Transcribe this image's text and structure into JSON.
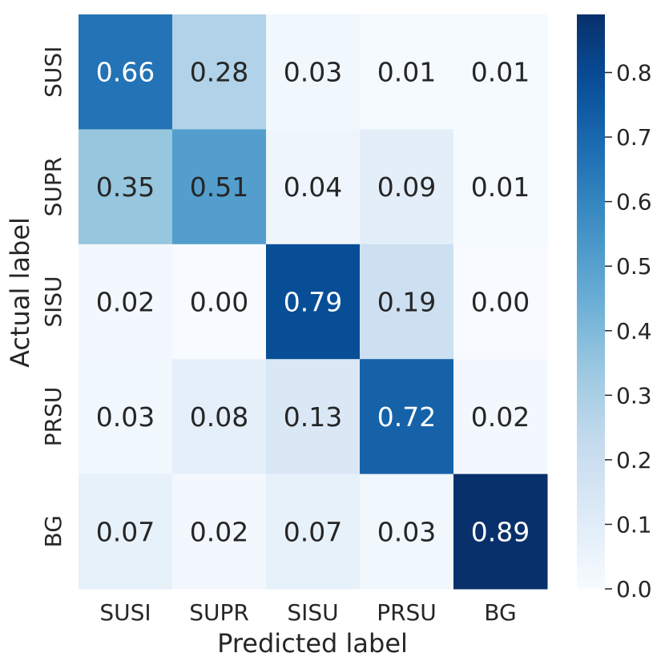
{
  "chart_data": {
    "type": "heatmap",
    "title": "",
    "xlabel": "Predicted label",
    "ylabel": "Actual label",
    "x_categories": [
      "SUSI",
      "SUPR",
      "SISU",
      "PRSU",
      "BG"
    ],
    "y_categories": [
      "SUSI",
      "SUPR",
      "SISU",
      "PRSU",
      "BG"
    ],
    "values": [
      [
        0.66,
        0.28,
        0.03,
        0.01,
        0.01
      ],
      [
        0.35,
        0.51,
        0.04,
        0.09,
        0.01
      ],
      [
        0.02,
        0.0,
        0.79,
        0.19,
        0.0
      ],
      [
        0.03,
        0.08,
        0.13,
        0.72,
        0.02
      ],
      [
        0.07,
        0.02,
        0.07,
        0.03,
        0.89
      ]
    ],
    "cell_labels": [
      [
        "0.66",
        "0.28",
        "0.03",
        "0.01",
        "0.01"
      ],
      [
        "0.35",
        "0.51",
        "0.04",
        "0.09",
        "0.01"
      ],
      [
        "0.02",
        "0.00",
        "0.79",
        "0.19",
        "0.00"
      ],
      [
        "0.03",
        "0.08",
        "0.13",
        "0.72",
        "0.02"
      ],
      [
        "0.07",
        "0.02",
        "0.07",
        "0.03",
        "0.89"
      ]
    ],
    "colormap": "Blues",
    "value_range": [
      0.0,
      0.89
    ],
    "colorbar": {
      "ticks": [
        0.0,
        0.1,
        0.2,
        0.3,
        0.4,
        0.5,
        0.6,
        0.7,
        0.8
      ],
      "tick_labels": [
        "0.0",
        "0.1",
        "0.2",
        "0.3",
        "0.4",
        "0.5",
        "0.6",
        "0.7",
        "0.8"
      ],
      "placement": "right"
    },
    "grid": false
  }
}
